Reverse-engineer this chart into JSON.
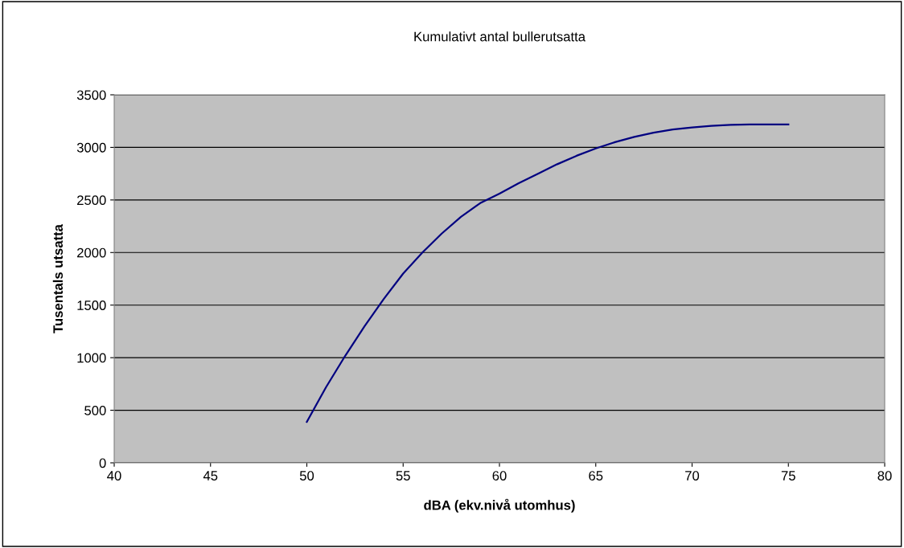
{
  "chart_data": {
    "type": "line",
    "title": "Kumulativt antal bullerutsatta",
    "xlabel": "dBA (ekv.nivå utomhus)",
    "ylabel": "Tusentals utsatta",
    "x": [
      50,
      51,
      52,
      53,
      54,
      55,
      56,
      57,
      58,
      59,
      60,
      61,
      62,
      63,
      64,
      65,
      66,
      67,
      68,
      69,
      70,
      71,
      72,
      73,
      74,
      75
    ],
    "series": [
      {
        "color": "#000080",
        "values": [
          390,
          720,
          1020,
          1300,
          1560,
          1800,
          2000,
          2180,
          2340,
          2470,
          2560,
          2660,
          2750,
          2840,
          2920,
          2990,
          3050,
          3100,
          3140,
          3170,
          3190,
          3205,
          3215,
          3218,
          3218,
          3218
        ]
      }
    ],
    "xlim": [
      40,
      80
    ],
    "xticks": [
      40,
      45,
      50,
      55,
      60,
      65,
      70,
      75,
      80
    ],
    "ylim": [
      0,
      3500
    ],
    "yticks": [
      0,
      500,
      1000,
      1500,
      2000,
      2500,
      3000,
      3500
    ],
    "grid": "y",
    "legend": false,
    "marker": "none",
    "line_style": "solid"
  }
}
